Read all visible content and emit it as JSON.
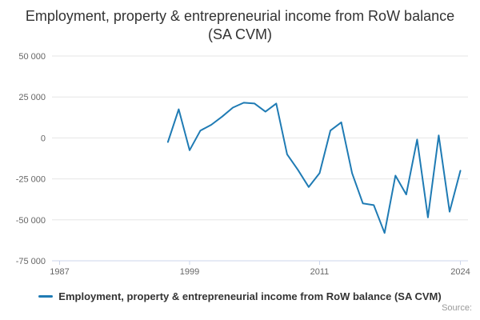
{
  "page": {
    "title": "Employment, property & entrepreneurial income from RoW balance (SA CVM)",
    "source_label": "Source:"
  },
  "legend": {
    "label": "Employment, property & entrepreneurial income from RoW balance (SA CVM)"
  },
  "chart_data": {
    "type": "line",
    "title": "Employment, property & entrepreneurial income from RoW balance (SA CVM)",
    "xlabel": "",
    "ylabel": "",
    "x": [
      1997,
      1998,
      1999,
      2000,
      2001,
      2002,
      2003,
      2004,
      2005,
      2006,
      2007,
      2008,
      2009,
      2010,
      2011,
      2012,
      2013,
      2014,
      2015,
      2016,
      2017,
      2018,
      2019,
      2020,
      2021,
      2022,
      2023,
      2024
    ],
    "series": [
      {
        "name": "Employment, property & entrepreneurial income from RoW balance (SA CVM)",
        "color": "#1f7bb4",
        "values": [
          -2500,
          17500,
          -7500,
          4500,
          8000,
          13000,
          18500,
          21500,
          21000,
          16000,
          21000,
          -10000,
          -19500,
          -30000,
          -21500,
          4500,
          9500,
          -21500,
          -40000,
          -41000,
          -58000,
          -23000,
          -34500,
          -1000,
          -48500,
          1500,
          -45000,
          -20000
        ]
      }
    ],
    "xticks": [
      1987,
      1999,
      2011,
      2024
    ],
    "yticks": [
      50000,
      25000,
      0,
      -25000,
      -50000,
      -75000
    ],
    "ytick_labels": [
      "50 000",
      "25 000",
      "0",
      "-25 000",
      "-50 000",
      "-75 000"
    ],
    "xlim": [
      1986.3,
      2024.7
    ],
    "ylim": [
      -75000,
      50000
    ],
    "grid": true,
    "legend_position": "bottom",
    "colors": {
      "line": "#1f7bb4",
      "grid": "#e6e6e6",
      "axis": "#ccd6eb",
      "tick_label": "#666666",
      "title": "#333333",
      "legend_text": "#333333",
      "source": "#999999"
    }
  }
}
